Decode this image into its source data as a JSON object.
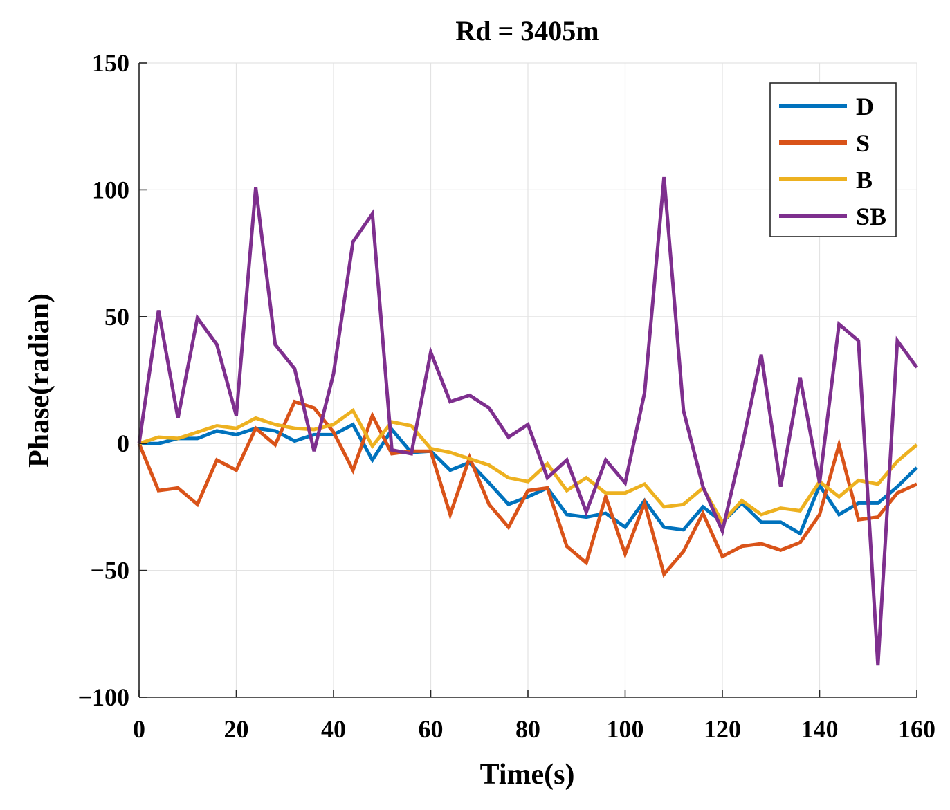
{
  "chart_data": {
    "type": "line",
    "title": "Rd = 3405m",
    "xlabel": "Time(s)",
    "ylabel": "Phase(radian)",
    "xlim": [
      0,
      160
    ],
    "ylim": [
      -100,
      150
    ],
    "xticks": [
      0,
      20,
      40,
      60,
      80,
      100,
      120,
      140,
      160
    ],
    "yticks": [
      150,
      100,
      50,
      0,
      -50,
      -100
    ],
    "xtick_labels": [
      "0",
      "20",
      "40",
      "60",
      "80",
      "100",
      "120",
      "140",
      "160"
    ],
    "ytick_labels": [
      "150",
      "100",
      "50",
      "0",
      "−50",
      "−100"
    ],
    "grid": true,
    "legend_position": "top-right",
    "x": [
      0,
      4,
      8,
      12,
      16,
      20,
      24,
      28,
      32,
      36,
      40,
      44,
      48,
      52,
      56,
      60,
      64,
      68,
      72,
      76,
      80,
      84,
      88,
      92,
      96,
      100,
      104,
      108,
      112,
      116,
      120,
      124,
      128,
      132,
      136,
      140,
      144,
      148,
      152,
      156,
      160
    ],
    "series": [
      {
        "name": "D",
        "color": "#0072BD",
        "values": [
          0,
          0,
          2,
          2,
          5,
          3.5,
          6,
          5,
          1,
          3.5,
          3.5,
          7.5,
          -6.5,
          5.5,
          -3.5,
          -3,
          -10.5,
          -7.5,
          -15.5,
          -24,
          -21,
          -17.5,
          -28,
          -29,
          -27.5,
          -33,
          -22.5,
          -33,
          -34,
          -25,
          -31,
          -23.5,
          -31,
          -31,
          -35.5,
          -16.5,
          -28,
          -23.5,
          -23.5,
          -17,
          -9.5
        ]
      },
      {
        "name": "S",
        "color": "#D95319",
        "values": [
          0,
          -18.5,
          -17.5,
          -24,
          -6.5,
          -10.5,
          6,
          -0.5,
          16.5,
          14,
          4.5,
          -10.5,
          11,
          -4,
          -3,
          -3,
          -28,
          -5.5,
          -24,
          -33,
          -18.5,
          -17.5,
          -40.5,
          -47,
          -21,
          -43.5,
          -23.5,
          -51.5,
          -42.5,
          -27.5,
          -44.5,
          -40.5,
          -39.5,
          -42,
          -39,
          -28,
          -0.5,
          -30,
          -29,
          -19.5,
          -16
        ]
      },
      {
        "name": "B",
        "color": "#EDB120",
        "values": [
          0,
          2.5,
          2,
          4.5,
          7,
          6,
          10,
          7.5,
          6,
          5.5,
          7.5,
          13,
          -1,
          8.5,
          7,
          -2,
          -3.5,
          -6,
          -8.5,
          -13.5,
          -15,
          -8,
          -18.5,
          -13.5,
          -19.5,
          -19.5,
          -16,
          -25,
          -24,
          -17.5,
          -31,
          -22.5,
          -28,
          -25.5,
          -26.5,
          -15,
          -21,
          -14.5,
          -16,
          -7,
          -0.5
        ]
      },
      {
        "name": "SB",
        "color": "#7E2F8E",
        "values": [
          0,
          52.5,
          10,
          49.5,
          39,
          11,
          101,
          39,
          29.5,
          -3,
          27.5,
          79.5,
          90.5,
          -2.5,
          -4,
          36,
          16.5,
          19,
          14,
          2.5,
          7.5,
          -13.5,
          -6.5,
          -27,
          -6.5,
          -15.5,
          20,
          105,
          13,
          -17,
          -34.5,
          -1.5,
          35,
          -17,
          26,
          -15.5,
          47,
          40.5,
          -87.5,
          40.5,
          30
        ]
      }
    ]
  }
}
